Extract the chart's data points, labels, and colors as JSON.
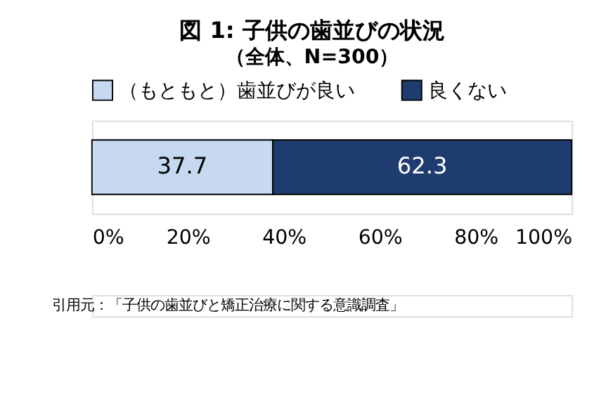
{
  "chart_data": {
    "type": "bar",
    "orientation": "horizontal",
    "stacked": true,
    "title": "図 1:  子供の歯並びの状況",
    "subtitle": "（全体、N=300）",
    "categories": [
      null
    ],
    "series": [
      {
        "name": "（もともと）歯並びが良い",
        "color": "#c6d9f1",
        "values": [
          37.7
        ]
      },
      {
        "name": "良くない",
        "color": "#1f3c6e",
        "values": [
          62.3
        ]
      }
    ],
    "xlim": [
      0,
      100
    ],
    "xticks": [
      {
        "value": 0,
        "label": "0%"
      },
      {
        "value": 20,
        "label": "20%"
      },
      {
        "value": 40,
        "label": "40%"
      },
      {
        "value": 60,
        "label": "60%"
      },
      {
        "value": 80,
        "label": "80%"
      },
      {
        "value": 100,
        "label": "100%"
      }
    ],
    "data_labels": true,
    "legend": "top left",
    "grid": false,
    "annotations": [
      "引用元：「子供の歯並びと矯正治療に関する意識調査」"
    ]
  }
}
